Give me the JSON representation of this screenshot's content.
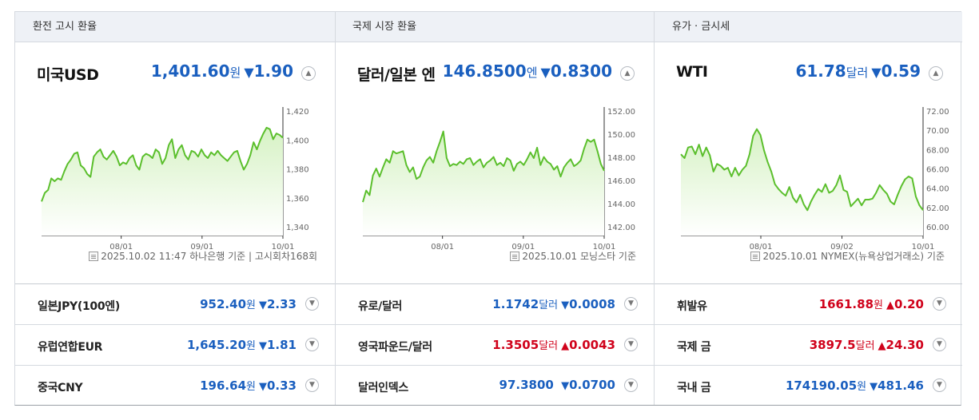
{
  "colors": {
    "up": "#d0021b",
    "down": "#1a5fbf",
    "line": "#5bbf2c",
    "fill_top": "#d6f2c4"
  },
  "panels": [
    {
      "header": "환전 고시 환율",
      "name": "미국USD",
      "value": "1,401.60",
      "unit": "원",
      "arrow": "▼",
      "change": "1.90",
      "direction": "down",
      "source": "2025.10.02 11:47 하나은행 기준 | 고시회차168회",
      "chart_data": {
        "type": "area",
        "x_ticks": [
          "08/01",
          "09/01",
          "10/01"
        ],
        "y_ticks": [
          "1,420",
          "1,400",
          "1,380",
          "1,360",
          "1,340"
        ],
        "ylim": [
          1340,
          1420
        ],
        "values": [
          1358,
          1364,
          1366,
          1374,
          1372,
          1374,
          1373,
          1379,
          1384,
          1387,
          1391,
          1392,
          1383,
          1381,
          1377,
          1375,
          1389,
          1392,
          1394,
          1389,
          1387,
          1390,
          1393,
          1389,
          1383,
          1385,
          1384,
          1388,
          1390,
          1383,
          1380,
          1389,
          1391,
          1390,
          1388,
          1394,
          1392,
          1384,
          1388,
          1397,
          1401,
          1388,
          1394,
          1397,
          1390,
          1387,
          1393,
          1392,
          1389,
          1394,
          1390,
          1388,
          1392,
          1390,
          1393,
          1390,
          1388,
          1386,
          1389,
          1392,
          1393,
          1386,
          1380,
          1384,
          1390,
          1399,
          1394,
          1400,
          1405,
          1409,
          1408,
          1401,
          1405,
          1404,
          1402
        ]
      }
    },
    {
      "header": "국제 시장 환율",
      "name": "달러/일본 엔",
      "value": "146.8500",
      "unit": "엔",
      "arrow": "▼",
      "change": "0.8300",
      "direction": "down",
      "source": "2025.10.01 모닝스타 기준",
      "chart_data": {
        "type": "area",
        "x_ticks": [
          "08/01",
          "09/01",
          "10/01"
        ],
        "y_ticks": [
          "152.00",
          "150.00",
          "148.00",
          "146.00",
          "144.00",
          "142.00"
        ],
        "ylim": [
          142,
          152
        ],
        "values": [
          144.2,
          145.2,
          144.8,
          146.5,
          147.1,
          146.4,
          147.2,
          147.9,
          147.6,
          148.6,
          148.4,
          148.5,
          148.6,
          147.4,
          146.8,
          147.2,
          146.2,
          146.4,
          147.2,
          147.8,
          148.1,
          147.6,
          148.6,
          149.4,
          150.3,
          148.0,
          147.3,
          147.5,
          147.4,
          147.7,
          147.5,
          147.9,
          148.0,
          147.4,
          147.7,
          147.9,
          147.2,
          147.6,
          147.8,
          148.1,
          147.4,
          147.6,
          147.3,
          148.0,
          147.8,
          146.9,
          147.5,
          147.7,
          147.4,
          147.9,
          148.5,
          148.0,
          148.9,
          147.4,
          148.1,
          147.7,
          147.5,
          147.0,
          147.3,
          146.4,
          147.2,
          147.6,
          147.9,
          147.3,
          147.5,
          147.8,
          148.8,
          149.6,
          149.4,
          149.6,
          148.6,
          147.5,
          146.9
        ]
      }
    },
    {
      "header": "유가 · 금시세",
      "name": "WTI",
      "value": "61.78",
      "unit": "달러",
      "arrow": "▼",
      "change": "0.59",
      "direction": "down",
      "source": "2025.10.01 NYMEX(뉴욕상업거래소) 기준",
      "chart_data": {
        "type": "area",
        "x_ticks": [
          "08/01",
          "09/02",
          "10/01"
        ],
        "y_ticks": [
          "72.00",
          "70.00",
          "68.00",
          "66.00",
          "64.00",
          "62.00",
          "60.00"
        ],
        "ylim": [
          60,
          72
        ],
        "values": [
          67.6,
          67.2,
          68.3,
          68.4,
          67.6,
          68.6,
          67.4,
          68.3,
          67.5,
          65.8,
          66.6,
          66.4,
          66.0,
          66.2,
          65.3,
          66.2,
          65.4,
          66.0,
          66.4,
          67.6,
          69.5,
          70.2,
          69.6,
          68.0,
          66.8,
          65.8,
          64.5,
          64.0,
          63.6,
          63.3,
          64.2,
          63.1,
          62.6,
          63.4,
          62.4,
          61.8,
          62.7,
          63.4,
          64.0,
          63.7,
          64.5,
          63.6,
          63.8,
          64.4,
          65.4,
          63.9,
          63.7,
          62.2,
          62.6,
          63.0,
          62.3,
          62.9,
          62.9,
          63.0,
          63.6,
          64.4,
          63.9,
          63.5,
          62.7,
          62.4,
          63.4,
          64.3,
          65.0,
          65.3,
          65.1,
          63.2,
          62.3,
          61.8
        ]
      }
    }
  ],
  "lists": [
    [
      {
        "name": "일본JPY(100엔)",
        "value": "952.40",
        "unit": "원",
        "arrow": "▼",
        "change": "2.33",
        "direction": "down"
      },
      {
        "name": "유럽연합EUR",
        "value": "1,645.20",
        "unit": "원",
        "arrow": "▼",
        "change": "1.81",
        "direction": "down"
      },
      {
        "name": "중국CNY",
        "value": "196.64",
        "unit": "원",
        "arrow": "▼",
        "change": "0.33",
        "direction": "down"
      }
    ],
    [
      {
        "name": "유로/달러",
        "value": "1.1742",
        "unit": "달러",
        "arrow": "▼",
        "change": "0.0008",
        "direction": "down"
      },
      {
        "name": "영국파운드/달러",
        "value": "1.3505",
        "unit": "달러",
        "arrow": "▲",
        "change": "0.0043",
        "direction": "up"
      },
      {
        "name": "달러인덱스",
        "value": "97.3800",
        "unit": "",
        "arrow": "▼",
        "change": "0.0700",
        "direction": "down"
      }
    ],
    [
      {
        "name": "휘발유",
        "value": "1661.88",
        "unit": "원",
        "arrow": "▲",
        "change": "0.20",
        "direction": "up"
      },
      {
        "name": "국제 금",
        "value": "3897.5",
        "unit": "달러",
        "arrow": "▲",
        "change": "24.30",
        "direction": "up"
      },
      {
        "name": "국내 금",
        "value": "174190.05",
        "unit": "원",
        "arrow": "▼",
        "change": "481.46",
        "direction": "down"
      }
    ]
  ]
}
